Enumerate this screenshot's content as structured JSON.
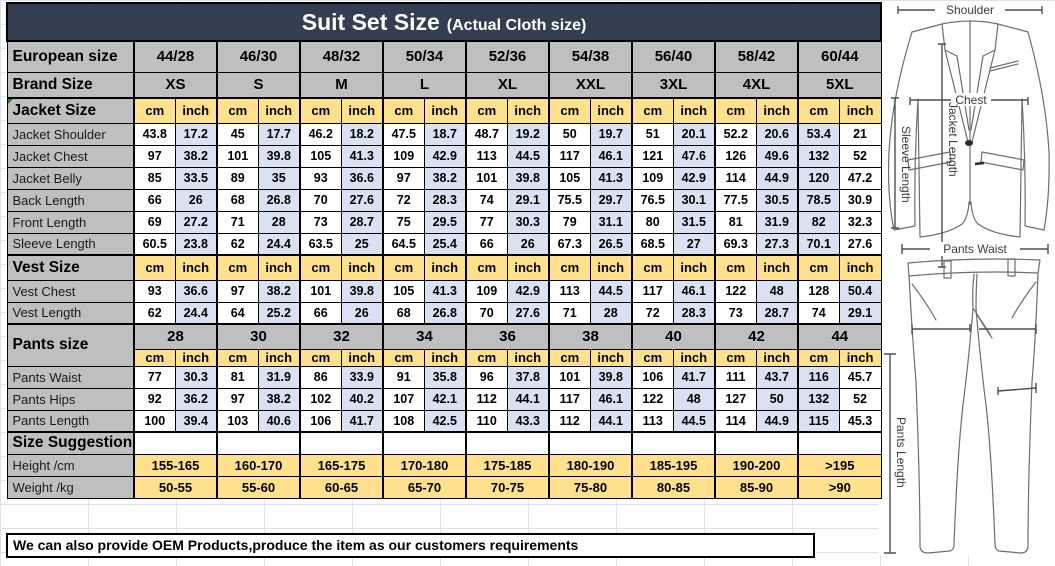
{
  "title": {
    "main": "Suit Set Size",
    "sub": "(Actual Cloth size)"
  },
  "units": {
    "cm": "cm",
    "inch": "inch"
  },
  "header": {
    "european_label": "European size",
    "european_sizes": [
      "44/28",
      "46/30",
      "48/32",
      "50/34",
      "52/36",
      "54/38",
      "56/40",
      "58/42",
      "60/44"
    ],
    "brand_label": "Brand Size",
    "brand_sizes": [
      "XS",
      "S",
      "M",
      "L",
      "XL",
      "XXL",
      "3XL",
      "4XL",
      "5XL"
    ]
  },
  "sections": {
    "jacket": {
      "label": "Jacket Size",
      "last_col_swapped": true,
      "rows": [
        {
          "label": "Jacket Shoulder",
          "pairs": [
            [
              "43.8",
              "17.2"
            ],
            [
              "45",
              "17.7"
            ],
            [
              "46.2",
              "18.2"
            ],
            [
              "47.5",
              "18.7"
            ],
            [
              "48.7",
              "19.2"
            ],
            [
              "50",
              "19.7"
            ],
            [
              "51",
              "20.1"
            ],
            [
              "52.2",
              "20.6"
            ],
            [
              "53.4",
              "21"
            ]
          ]
        },
        {
          "label": "Jacket Chest",
          "pairs": [
            [
              "97",
              "38.2"
            ],
            [
              "101",
              "39.8"
            ],
            [
              "105",
              "41.3"
            ],
            [
              "109",
              "42.9"
            ],
            [
              "113",
              "44.5"
            ],
            [
              "117",
              "46.1"
            ],
            [
              "121",
              "47.6"
            ],
            [
              "126",
              "49.6"
            ],
            [
              "132",
              "52"
            ]
          ]
        },
        {
          "label": "Jacket Belly",
          "pairs": [
            [
              "85",
              "33.5"
            ],
            [
              "89",
              "35"
            ],
            [
              "93",
              "36.6"
            ],
            [
              "97",
              "38.2"
            ],
            [
              "101",
              "39.8"
            ],
            [
              "105",
              "41.3"
            ],
            [
              "109",
              "42.9"
            ],
            [
              "114",
              "44.9"
            ],
            [
              "120",
              "47.2"
            ]
          ]
        },
        {
          "label": "Back Length",
          "pairs": [
            [
              "66",
              "26"
            ],
            [
              "68",
              "26.8"
            ],
            [
              "70",
              "27.6"
            ],
            [
              "72",
              "28.3"
            ],
            [
              "74",
              "29.1"
            ],
            [
              "75.5",
              "29.7"
            ],
            [
              "76.5",
              "30.1"
            ],
            [
              "77.5",
              "30.5"
            ],
            [
              "78.5",
              "30.9"
            ]
          ]
        },
        {
          "label": "Front Length",
          "pairs": [
            [
              "69",
              "27.2"
            ],
            [
              "71",
              "28"
            ],
            [
              "73",
              "28.7"
            ],
            [
              "75",
              "29.5"
            ],
            [
              "77",
              "30.3"
            ],
            [
              "79",
              "31.1"
            ],
            [
              "80",
              "31.5"
            ],
            [
              "81",
              "31.9"
            ],
            [
              "82",
              "32.3"
            ]
          ]
        },
        {
          "label": "Sleeve Length",
          "pairs": [
            [
              "60.5",
              "23.8"
            ],
            [
              "62",
              "24.4"
            ],
            [
              "63.5",
              "25"
            ],
            [
              "64.5",
              "25.4"
            ],
            [
              "66",
              "26"
            ],
            [
              "67.3",
              "26.5"
            ],
            [
              "68.5",
              "27"
            ],
            [
              "69.3",
              "27.3"
            ],
            [
              "70.1",
              "27.6"
            ]
          ]
        }
      ]
    },
    "vest": {
      "label": "Vest Size",
      "last_col_swapped": false,
      "rows": [
        {
          "label": "Vest Chest",
          "pairs": [
            [
              "93",
              "36.6"
            ],
            [
              "97",
              "38.2"
            ],
            [
              "101",
              "39.8"
            ],
            [
              "105",
              "41.3"
            ],
            [
              "109",
              "42.9"
            ],
            [
              "113",
              "44.5"
            ],
            [
              "117",
              "46.1"
            ],
            [
              "122",
              "48"
            ],
            [
              "128",
              "50.4"
            ]
          ]
        },
        {
          "label": "Vest Length",
          "pairs": [
            [
              "62",
              "24.4"
            ],
            [
              "64",
              "25.2"
            ],
            [
              "66",
              "26"
            ],
            [
              "68",
              "26.8"
            ],
            [
              "70",
              "27.6"
            ],
            [
              "71",
              "28"
            ],
            [
              "72",
              "28.3"
            ],
            [
              "73",
              "28.7"
            ],
            [
              "74",
              "29.1"
            ]
          ]
        }
      ]
    },
    "pants": {
      "label": "Pants size",
      "last_col_swapped": true,
      "sizes": [
        "28",
        "30",
        "32",
        "34",
        "36",
        "38",
        "40",
        "42",
        "44"
      ],
      "rows": [
        {
          "label": "Pants Waist",
          "pairs": [
            [
              "77",
              "30.3"
            ],
            [
              "81",
              "31.9"
            ],
            [
              "86",
              "33.9"
            ],
            [
              "91",
              "35.8"
            ],
            [
              "96",
              "37.8"
            ],
            [
              "101",
              "39.8"
            ],
            [
              "106",
              "41.7"
            ],
            [
              "111",
              "43.7"
            ],
            [
              "116",
              "45.7"
            ]
          ]
        },
        {
          "label": "Pants Hips",
          "pairs": [
            [
              "92",
              "36.2"
            ],
            [
              "97",
              "38.2"
            ],
            [
              "102",
              "40.2"
            ],
            [
              "107",
              "42.1"
            ],
            [
              "112",
              "44.1"
            ],
            [
              "117",
              "46.1"
            ],
            [
              "122",
              "48"
            ],
            [
              "127",
              "50"
            ],
            [
              "132",
              "52"
            ]
          ]
        },
        {
          "label": "Pants Length",
          "pairs": [
            [
              "100",
              "39.4"
            ],
            [
              "103",
              "40.6"
            ],
            [
              "106",
              "41.7"
            ],
            [
              "108",
              "42.5"
            ],
            [
              "110",
              "43.3"
            ],
            [
              "112",
              "44.1"
            ],
            [
              "113",
              "44.5"
            ],
            [
              "114",
              "44.9"
            ],
            [
              "115",
              "45.3"
            ]
          ]
        }
      ]
    },
    "suggestion": {
      "label": "Size Suggestion",
      "rows": [
        {
          "label": "Height /cm",
          "values": [
            "155-165",
            "160-170",
            "165-175",
            "170-180",
            "175-185",
            "180-190",
            "185-195",
            "190-200",
            ">195"
          ]
        },
        {
          "label": "Weight /kg",
          "values": [
            "50-55",
            "55-60",
            "60-65",
            "65-70",
            "70-75",
            "75-80",
            "80-85",
            "85-90",
            ">90"
          ]
        }
      ]
    }
  },
  "footer": {
    "oem_note": "We can also provide OEM Products,produce the item as our customers requirements"
  },
  "diagram": {
    "shoulder": "Shoulder",
    "chest": "Chest",
    "sleeve_length": "Sleeve Length",
    "jacket_length": "Jacket Length",
    "pants_waist": "Pants Waist",
    "pants_length": "Pants Length"
  },
  "colors": {
    "header_bar": "#333F50",
    "label_gray": "#BFBFBF",
    "unit_yellow": "#FFE18D",
    "inch_blue": "#D9E1F2",
    "border": "#000000"
  }
}
